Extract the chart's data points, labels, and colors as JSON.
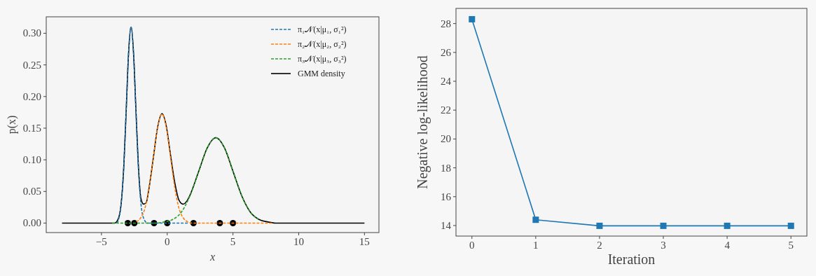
{
  "chart_data": [
    {
      "type": "line",
      "xlabel": "x",
      "ylabel": "p(x)",
      "xlim": [
        -9.2,
        16.1
      ],
      "ylim": [
        -0.015,
        0.326
      ],
      "xticks": [
        {
          "value": -5,
          "label": "−5"
        },
        0,
        5,
        10,
        15
      ],
      "yticks": [
        {
          "value": 0,
          "label": "0.00"
        },
        {
          "value": 0.05,
          "label": "0.05"
        },
        {
          "value": 0.1,
          "label": "0.10"
        },
        {
          "value": 0.15,
          "label": "0.15"
        },
        {
          "value": 0.2,
          "label": "0.20"
        },
        {
          "value": 0.25,
          "label": "0.25"
        },
        {
          "value": 0.3,
          "label": "0.30"
        }
      ],
      "legend": "top right",
      "grid": false,
      "series": [
        {
          "name": "π₁𝒩(x|μ₁, σ₁²)",
          "color": "#1f77b4",
          "line_style": "dashed",
          "x": [
            -3.8,
            -3.5,
            -3.3,
            -3.1,
            -2.95,
            -2.75,
            -2.55,
            -2.4,
            -2.2,
            -2,
            -1.8,
            -1.5,
            1.6
          ],
          "values": [
            0,
            0.031,
            0.09,
            0.188,
            0.264,
            0.31,
            0.264,
            0.188,
            0.09,
            0.031,
            0.008,
            0,
            0
          ]
        },
        {
          "name": "π₂𝒩(x|μ₂, σ₂²)",
          "color": "#ff7f0e",
          "line_style": "dashed",
          "x": [
            -2.35,
            -2.025,
            -1.7,
            -1.375,
            -1.05,
            -0.725,
            -0.4,
            -0.075,
            0.25,
            0.575,
            0.9,
            1.225,
            1.55,
            1.875,
            8
          ],
          "values": [
            0.002,
            0.008,
            0.023,
            0.056,
            0.104,
            0.152,
            0.172,
            0.152,
            0.104,
            0.056,
            0.023,
            0.008,
            0.002,
            0,
            0
          ]
        },
        {
          "name": "π₃𝒩(x|μ₃, σ₃²)",
          "color": "#2ca02c",
          "line_style": "dashed",
          "x": [
            -4.2,
            -0.85,
            -0.2,
            0.45,
            1.1,
            1.75,
            2.4,
            3.05,
            3.7,
            4.35,
            5,
            5.65,
            6.3,
            6.95
          ],
          "values": [
            0,
            0,
            0.002,
            0.006,
            0.018,
            0.044,
            0.082,
            0.119,
            0.135,
            0.119,
            0.082,
            0.044,
            0.018,
            0.006
          ]
        },
        {
          "name": "GMM density",
          "color": "#000000",
          "line_style": "solid",
          "x": [
            -8,
            -4,
            -3.7,
            -3.5,
            -3.3,
            -3.1,
            -2.95,
            -2.75,
            -2.55,
            -2.4,
            -2.2,
            -2,
            -1.8,
            -1.6,
            -1.4,
            -1.05,
            -0.725,
            -0.4,
            -0.075,
            0.25,
            0.575,
            0.9,
            1.2,
            1.5,
            1.75,
            2.4,
            3.05,
            3.7,
            4.35,
            5,
            5.65,
            6.3,
            6.95,
            7.6,
            8.25,
            15
          ],
          "values": [
            0,
            0,
            0.008,
            0.031,
            0.09,
            0.188,
            0.264,
            0.31,
            0.265,
            0.19,
            0.094,
            0.039,
            0.03,
            0.032,
            0.053,
            0.104,
            0.152,
            0.173,
            0.154,
            0.108,
            0.064,
            0.036,
            0.03,
            0.035,
            0.045,
            0.082,
            0.119,
            0.135,
            0.119,
            0.082,
            0.044,
            0.018,
            0.006,
            0.002,
            0,
            0
          ]
        },
        {
          "type": "scatter",
          "color": "#000000",
          "marker": "circle",
          "x": [
            -3,
            -2.5,
            -1,
            0,
            2,
            4,
            5
          ],
          "values": [
            0,
            0,
            0,
            0,
            0,
            0,
            0
          ]
        }
      ]
    },
    {
      "type": "line",
      "xlabel": "Iteration",
      "ylabel": "Negative log-likelihood",
      "xlim": [
        -0.25,
        5.25
      ],
      "ylim": [
        13.27,
        29.05
      ],
      "xticks": [
        0,
        1,
        2,
        3,
        4,
        5
      ],
      "yticks": [
        14,
        16,
        18,
        20,
        22,
        24,
        26,
        28
      ],
      "grid": false,
      "legend": false,
      "marker": "square",
      "series": [
        {
          "color": "#1f77b4",
          "x": [
            0,
            1,
            2,
            3,
            4,
            5
          ],
          "values": [
            28.3,
            14.4,
            13.98,
            13.98,
            13.98,
            13.98
          ]
        }
      ]
    }
  ]
}
